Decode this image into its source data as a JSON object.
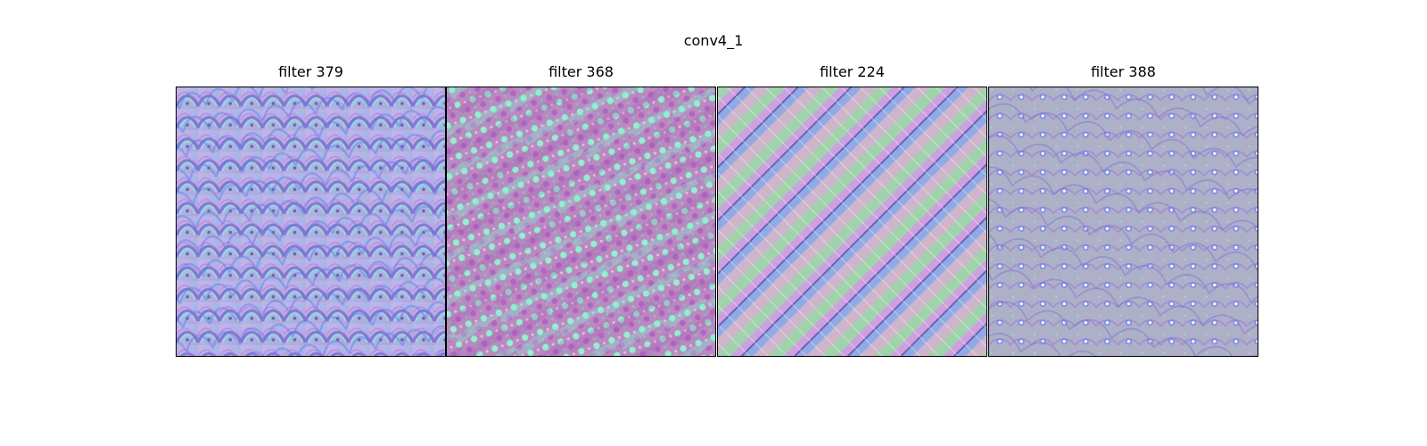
{
  "figure": {
    "title": "conv4_1"
  },
  "panels": [
    {
      "title": "filter 379"
    },
    {
      "title": "filter 368"
    },
    {
      "title": "filter 224"
    },
    {
      "title": "filter 388"
    }
  ],
  "colors": {
    "base_lavender": "#b3a7d6",
    "teal_highlight": "#86f0d0",
    "magenta": "#c07ad8",
    "blue": "#7f8fe8",
    "green": "#a8d8b0",
    "pink": "#e3a9cf",
    "frame": "#000000"
  }
}
